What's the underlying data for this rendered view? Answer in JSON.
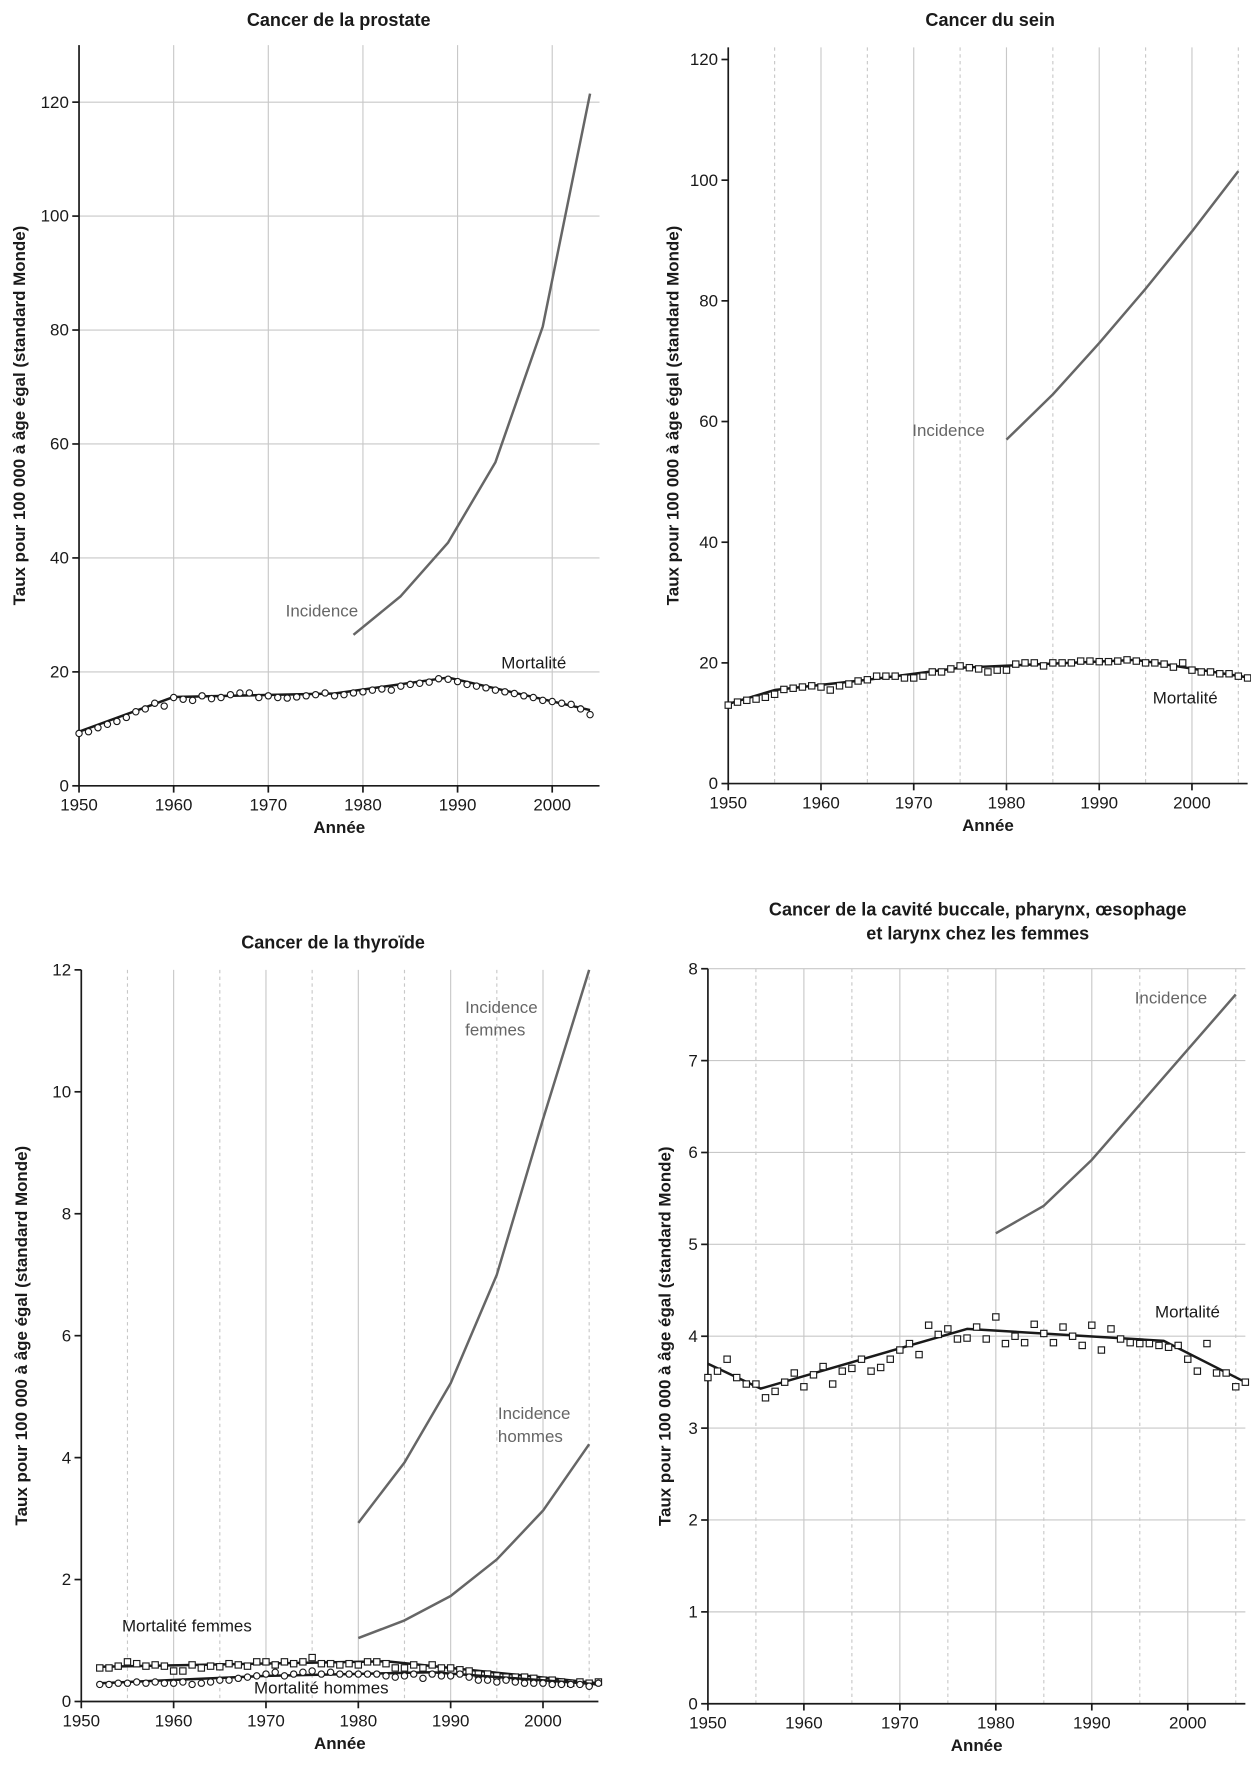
{
  "chart_data": [
    {
      "type": "line",
      "title": "Cancer de la prostate",
      "xlabel": "Année",
      "ylabel": "Taux pour 100 000 à âge égal (standard Monde)",
      "xlim": [
        1950,
        2005
      ],
      "xticks": [
        1950,
        1960,
        1970,
        1980,
        1990,
        2000
      ],
      "ylim": [
        0,
        130
      ],
      "yticks": [
        0,
        20,
        40,
        60,
        80,
        100,
        120
      ],
      "xgrid": true,
      "ygrid": true,
      "xminor": [],
      "series": [
        {
          "name": "Incidence",
          "color": "#666666",
          "style": "line",
          "x": [
            1979,
            1984,
            1989,
            1994,
            1999,
            2004
          ],
          "values": [
            26.5,
            33.3,
            42.7,
            56.8,
            80.6,
            121.5
          ]
        },
        {
          "name": "Mortalité",
          "color": "#1a1a1a",
          "style": "line",
          "x": [
            1950,
            1960,
            1977,
            1989,
            2004
          ],
          "values": [
            9.5,
            15.6,
            16.2,
            19.0,
            13.3
          ]
        },
        {
          "color": "#1a1a1a",
          "style": "markers",
          "marker": "circle",
          "x": [
            1950,
            1951,
            1952,
            1953,
            1954,
            1955,
            1956,
            1957,
            1958,
            1959,
            1960,
            1961,
            1962,
            1963,
            1964,
            1965,
            1966,
            1967,
            1968,
            1969,
            1970,
            1971,
            1972,
            1973,
            1974,
            1975,
            1976,
            1977,
            1978,
            1979,
            1980,
            1981,
            1982,
            1983,
            1984,
            1985,
            1986,
            1987,
            1988,
            1989,
            1990,
            1991,
            1992,
            1993,
            1994,
            1995,
            1996,
            1997,
            1998,
            1999,
            2000,
            2001,
            2002,
            2003,
            2004
          ],
          "values": [
            9.2,
            9.5,
            10.2,
            10.8,
            11.3,
            12.0,
            13.0,
            13.5,
            14.5,
            14.0,
            15.5,
            15.2,
            15.0,
            15.8,
            15.3,
            15.5,
            16.0,
            16.3,
            16.3,
            15.5,
            15.8,
            15.5,
            15.4,
            15.6,
            15.8,
            16.0,
            16.3,
            15.8,
            16.0,
            16.3,
            16.5,
            16.8,
            17.0,
            16.8,
            17.5,
            17.8,
            18.0,
            18.2,
            18.8,
            18.7,
            18.3,
            17.8,
            17.5,
            17.2,
            16.8,
            16.5,
            16.2,
            15.8,
            15.5,
            15.0,
            14.8,
            14.5,
            14.3,
            13.5,
            12.5
          ]
        }
      ]
    },
    {
      "type": "line",
      "title": "Cancer du sein",
      "xlabel": "Année",
      "ylabel": "Taux pour 100 000 à âge égal (standard Monde)",
      "xlim": [
        1950,
        2006
      ],
      "xticks": [
        1950,
        1960,
        1970,
        1980,
        1990,
        2000
      ],
      "ylim": [
        0,
        122
      ],
      "yticks": [
        0,
        20,
        40,
        60,
        80,
        100,
        120
      ],
      "xgrid": true,
      "ygrid": false,
      "xminor": [
        1955,
        1965,
        1975,
        1985,
        1995,
        2005
      ],
      "series": [
        {
          "name": "Incidence",
          "color": "#666666",
          "style": "line",
          "x": [
            1980,
            1985,
            1990,
            1995,
            2000,
            2005
          ],
          "values": [
            57,
            64.5,
            73,
            82,
            91.5,
            101.5
          ]
        },
        {
          "name": "Mortalité",
          "color": "#1a1a1a",
          "style": "line",
          "x": [
            1950,
            1955,
            1965,
            1975,
            1994,
            2006
          ],
          "values": [
            13.2,
            15.5,
            17.2,
            19.2,
            20.5,
            17.6
          ]
        },
        {
          "color": "#1a1a1a",
          "style": "markers",
          "marker": "square",
          "x": [
            1950,
            1951,
            1952,
            1953,
            1954,
            1955,
            1956,
            1957,
            1958,
            1959,
            1960,
            1961,
            1962,
            1963,
            1964,
            1965,
            1966,
            1967,
            1968,
            1969,
            1970,
            1971,
            1972,
            1973,
            1974,
            1975,
            1976,
            1977,
            1978,
            1979,
            1980,
            1981,
            1982,
            1983,
            1984,
            1985,
            1986,
            1987,
            1988,
            1989,
            1990,
            1991,
            1992,
            1993,
            1994,
            1995,
            1996,
            1997,
            1998,
            1999,
            2000,
            2001,
            2002,
            2003,
            2004,
            2005,
            2006
          ],
          "values": [
            13.0,
            13.5,
            13.8,
            14.0,
            14.3,
            14.8,
            15.6,
            15.8,
            16.0,
            16.2,
            16.0,
            15.5,
            16.2,
            16.5,
            17.0,
            17.2,
            17.8,
            17.8,
            17.8,
            17.5,
            17.5,
            17.8,
            18.5,
            18.5,
            19.0,
            19.5,
            19.2,
            19.0,
            18.5,
            18.8,
            18.8,
            19.8,
            20.0,
            20.0,
            19.5,
            20.0,
            20.0,
            20.0,
            20.3,
            20.3,
            20.2,
            20.2,
            20.3,
            20.5,
            20.3,
            20.0,
            20.0,
            19.8,
            19.3,
            20.0,
            18.8,
            18.5,
            18.5,
            18.2,
            18.2,
            17.8,
            17.5
          ]
        }
      ]
    },
    {
      "type": "line",
      "title": "Cancer de la thyroïde",
      "xlabel": "Année",
      "ylabel": "Taux pour 100 000 à âge égal (standard Monde)",
      "xlim": [
        1950,
        2006
      ],
      "xticks": [
        1950,
        1960,
        1970,
        1980,
        1990,
        2000
      ],
      "ylim": [
        0,
        12
      ],
      "yticks": [
        0,
        2,
        4,
        6,
        8,
        10,
        12
      ],
      "xgrid": true,
      "ygrid": false,
      "xminor": [
        1955,
        1965,
        1975,
        1985,
        1995,
        2005
      ],
      "series": [
        {
          "name": "Incidence femmes",
          "color": "#666666",
          "style": "line",
          "x": [
            1980,
            1985,
            1990,
            1995,
            2000,
            2005
          ],
          "values": [
            2.93,
            3.92,
            5.22,
            7.0,
            9.55,
            12.0
          ]
        },
        {
          "name": "Incidence hommes",
          "color": "#666666",
          "style": "line",
          "x": [
            1980,
            1985,
            1990,
            1995,
            2000,
            2005
          ],
          "values": [
            1.04,
            1.33,
            1.73,
            2.33,
            3.13,
            4.22
          ]
        },
        {
          "name": "Mortalité femmes",
          "color": "#1a1a1a",
          "style": "line",
          "x": [
            1952,
            1983,
            2006
          ],
          "values": [
            0.57,
            0.66,
            0.3
          ]
        },
        {
          "color": "#1a1a1a",
          "style": "markers",
          "marker": "square",
          "x": [
            1952,
            1953,
            1954,
            1955,
            1956,
            1957,
            1958,
            1959,
            1960,
            1961,
            1962,
            1963,
            1964,
            1965,
            1966,
            1967,
            1968,
            1969,
            1970,
            1971,
            1972,
            1973,
            1974,
            1975,
            1976,
            1977,
            1978,
            1979,
            1980,
            1981,
            1982,
            1983,
            1984,
            1985,
            1986,
            1987,
            1988,
            1989,
            1990,
            1991,
            1992,
            1993,
            1994,
            1995,
            1996,
            1997,
            1998,
            1999,
            2000,
            2001,
            2002,
            2003,
            2004,
            2005,
            2006
          ],
          "values": [
            0.55,
            0.55,
            0.58,
            0.65,
            0.62,
            0.58,
            0.6,
            0.58,
            0.5,
            0.5,
            0.6,
            0.55,
            0.58,
            0.57,
            0.62,
            0.6,
            0.58,
            0.65,
            0.65,
            0.6,
            0.65,
            0.62,
            0.65,
            0.72,
            0.62,
            0.62,
            0.6,
            0.62,
            0.6,
            0.65,
            0.65,
            0.62,
            0.55,
            0.55,
            0.6,
            0.55,
            0.6,
            0.55,
            0.55,
            0.52,
            0.5,
            0.45,
            0.45,
            0.42,
            0.4,
            0.4,
            0.4,
            0.38,
            0.35,
            0.35,
            0.32,
            0.3,
            0.32,
            0.3,
            0.32
          ]
        },
        {
          "name": "Mortalité hommes",
          "color": "#1a1a1a",
          "style": "line",
          "x": [
            1952,
            1970,
            1988,
            2006
          ],
          "values": [
            0.3,
            0.42,
            0.48,
            0.28
          ]
        },
        {
          "color": "#1a1a1a",
          "style": "markers",
          "marker": "circle",
          "x": [
            1952,
            1953,
            1954,
            1955,
            1956,
            1957,
            1958,
            1959,
            1960,
            1961,
            1962,
            1963,
            1964,
            1965,
            1966,
            1967,
            1968,
            1969,
            1970,
            1971,
            1972,
            1973,
            1974,
            1975,
            1976,
            1977,
            1978,
            1979,
            1980,
            1981,
            1982,
            1983,
            1984,
            1985,
            1986,
            1987,
            1988,
            1989,
            1990,
            1991,
            1992,
            1993,
            1994,
            1995,
            1996,
            1997,
            1998,
            1999,
            2000,
            2001,
            2002,
            2003,
            2004,
            2005,
            2006
          ],
          "values": [
            0.28,
            0.28,
            0.3,
            0.3,
            0.32,
            0.3,
            0.32,
            0.3,
            0.3,
            0.32,
            0.28,
            0.3,
            0.32,
            0.35,
            0.35,
            0.38,
            0.4,
            0.42,
            0.45,
            0.48,
            0.42,
            0.45,
            0.48,
            0.5,
            0.45,
            0.48,
            0.45,
            0.45,
            0.45,
            0.45,
            0.45,
            0.42,
            0.4,
            0.42,
            0.45,
            0.38,
            0.45,
            0.42,
            0.42,
            0.45,
            0.4,
            0.35,
            0.35,
            0.32,
            0.35,
            0.32,
            0.3,
            0.3,
            0.3,
            0.28,
            0.28,
            0.28,
            0.28,
            0.25,
            0.3
          ]
        }
      ]
    },
    {
      "type": "line",
      "title": "Cancer de la cavité buccale, pharynx, œsophage et larynx chez les femmes",
      "xlabel": "Année",
      "ylabel": "Taux pour 100 000 à âge égal (standard Monde)",
      "xlim": [
        1950,
        2006
      ],
      "xticks": [
        1950,
        1960,
        1970,
        1980,
        1990,
        2000
      ],
      "ylim": [
        0,
        8
      ],
      "yticks": [
        0,
        1,
        2,
        3,
        4,
        5,
        6,
        7,
        8
      ],
      "xgrid": true,
      "ygrid": true,
      "xminor": [
        1955,
        1965,
        1975,
        1985,
        1995,
        2005
      ],
      "series": [
        {
          "name": "Incidence",
          "color": "#666666",
          "style": "line",
          "x": [
            1980,
            1985,
            1990,
            1995,
            2000,
            2005
          ],
          "values": [
            5.12,
            5.42,
            5.92,
            6.52,
            7.12,
            7.72
          ]
        },
        {
          "name": "Mortalité",
          "color": "#1a1a1a",
          "style": "line",
          "x": [
            1950,
            1955.5,
            1977,
            1997.5,
            2006
          ],
          "values": [
            3.7,
            3.43,
            4.08,
            3.95,
            3.5
          ]
        },
        {
          "color": "#1a1a1a",
          "style": "markers",
          "marker": "square",
          "x": [
            1950,
            1951,
            1952,
            1953,
            1954,
            1955,
            1956,
            1957,
            1958,
            1959,
            1960,
            1961,
            1962,
            1963,
            1964,
            1965,
            1966,
            1967,
            1968,
            1969,
            1970,
            1971,
            1972,
            1973,
            1974,
            1975,
            1976,
            1977,
            1978,
            1979,
            1980,
            1981,
            1982,
            1983,
            1984,
            1985,
            1986,
            1987,
            1988,
            1989,
            1990,
            1991,
            1992,
            1993,
            1994,
            1995,
            1996,
            1997,
            1998,
            1999,
            2000,
            2001,
            2002,
            2003,
            2004,
            2005,
            2006
          ],
          "values": [
            3.55,
            3.62,
            3.75,
            3.55,
            3.48,
            3.48,
            3.33,
            3.4,
            3.5,
            3.6,
            3.45,
            3.58,
            3.67,
            3.48,
            3.62,
            3.65,
            3.75,
            3.62,
            3.66,
            3.75,
            3.85,
            3.92,
            3.8,
            4.12,
            4.02,
            4.08,
            3.97,
            3.98,
            4.1,
            3.97,
            4.21,
            3.92,
            4.0,
            3.93,
            4.13,
            4.03,
            3.93,
            4.1,
            4.0,
            3.9,
            4.12,
            3.85,
            4.08,
            3.97,
            3.93,
            3.92,
            3.92,
            3.9,
            3.88,
            3.9,
            3.75,
            3.62,
            3.92,
            3.6,
            3.6,
            3.45,
            3.5
          ]
        }
      ]
    }
  ]
}
